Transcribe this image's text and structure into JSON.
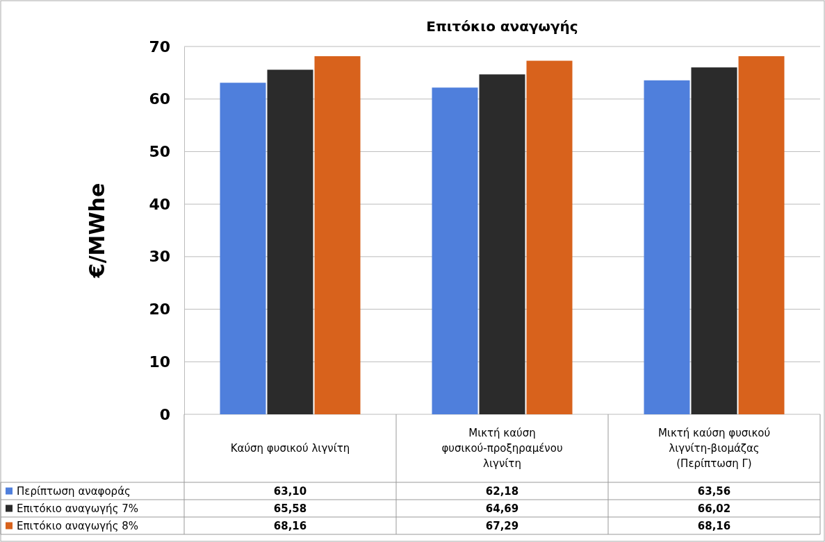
{
  "chart_data": {
    "type": "bar",
    "title": "Επιτόκιο αναγωγής",
    "ylabel": "€/MWhe",
    "categories": [
      "Καύση φυσικού λιγνίτη",
      "Μικτή καύση φυσικού-προξηραμένου λιγνίτη",
      "Μικτή καύση φυσικού λιγνίτη-βιομάζας (Περίπτωση Γ)"
    ],
    "series": [
      {
        "name": "Περίπτωση αναφοράς",
        "color": "#4f7fdc",
        "values": [
          63.1,
          62.18,
          63.56
        ],
        "value_labels": [
          "63,10",
          "62,18",
          "63,56"
        ]
      },
      {
        "name": "Επιτόκιο αναγωγής 7%",
        "color": "#2b2b2b",
        "values": [
          65.58,
          64.69,
          66.02
        ],
        "value_labels": [
          "65,58",
          "64,69",
          "66,02"
        ]
      },
      {
        "name": "Επιτόκιο αναγωγής 8%",
        "color": "#d8621c",
        "values": [
          68.16,
          67.29,
          68.16
        ],
        "value_labels": [
          "68,16",
          "67,29",
          "68,16"
        ]
      }
    ],
    "ylim": [
      0,
      70
    ],
    "yticks": [
      0,
      10,
      20,
      30,
      40,
      50,
      60,
      70
    ],
    "grid": "y",
    "legend": "bottom"
  }
}
